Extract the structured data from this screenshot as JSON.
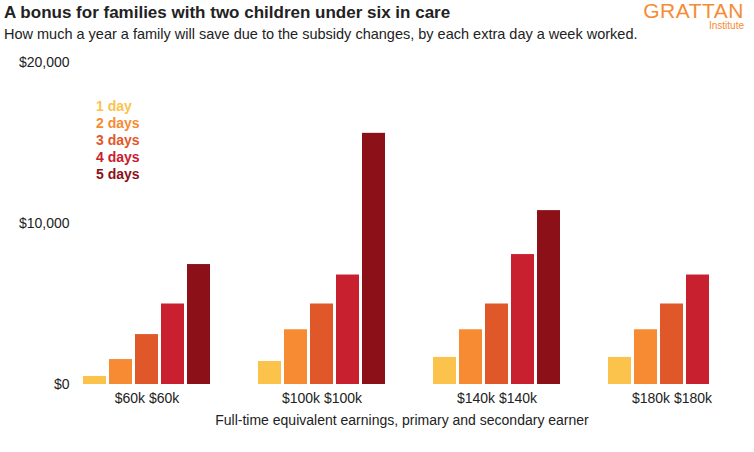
{
  "chart_data": {
    "type": "bar",
    "title": "A bonus for families with two children under six in care",
    "subtitle": "How much a year a family will save due to the subsidy changes, by each extra day a week worked.",
    "brand": {
      "name": "GRATTAN",
      "sub": "Institute"
    },
    "x_label": "Full-time equivalent earnings, primary and secondary earner",
    "categories": [
      "$60k $60k",
      "$100k $100k",
      "$140k $140k",
      "$180k $180k"
    ],
    "series": [
      {
        "name": "1 day",
        "color": "#FBC34C",
        "values": [
          500,
          1430,
          1680,
          1680
        ]
      },
      {
        "name": "2 days",
        "color": "#F68B33",
        "values": [
          1550,
          3400,
          3400,
          3400
        ]
      },
      {
        "name": "3 days",
        "color": "#E0582A",
        "values": [
          3100,
          5000,
          5000,
          5000
        ]
      },
      {
        "name": "4 days",
        "color": "#C8202E",
        "values": [
          5000,
          6800,
          8070,
          6800
        ]
      },
      {
        "name": "5 days",
        "color": "#8B1018",
        "values": [
          7450,
          15600,
          10800,
          null
        ]
      }
    ],
    "ylim": [
      0,
      20000
    ],
    "yticks": [
      {
        "value": 0,
        "label": "$0"
      },
      {
        "value": 10000,
        "label": "$10,000"
      },
      {
        "value": 20000,
        "label": "$20,000"
      }
    ],
    "grid": false,
    "legend": "top-left"
  }
}
